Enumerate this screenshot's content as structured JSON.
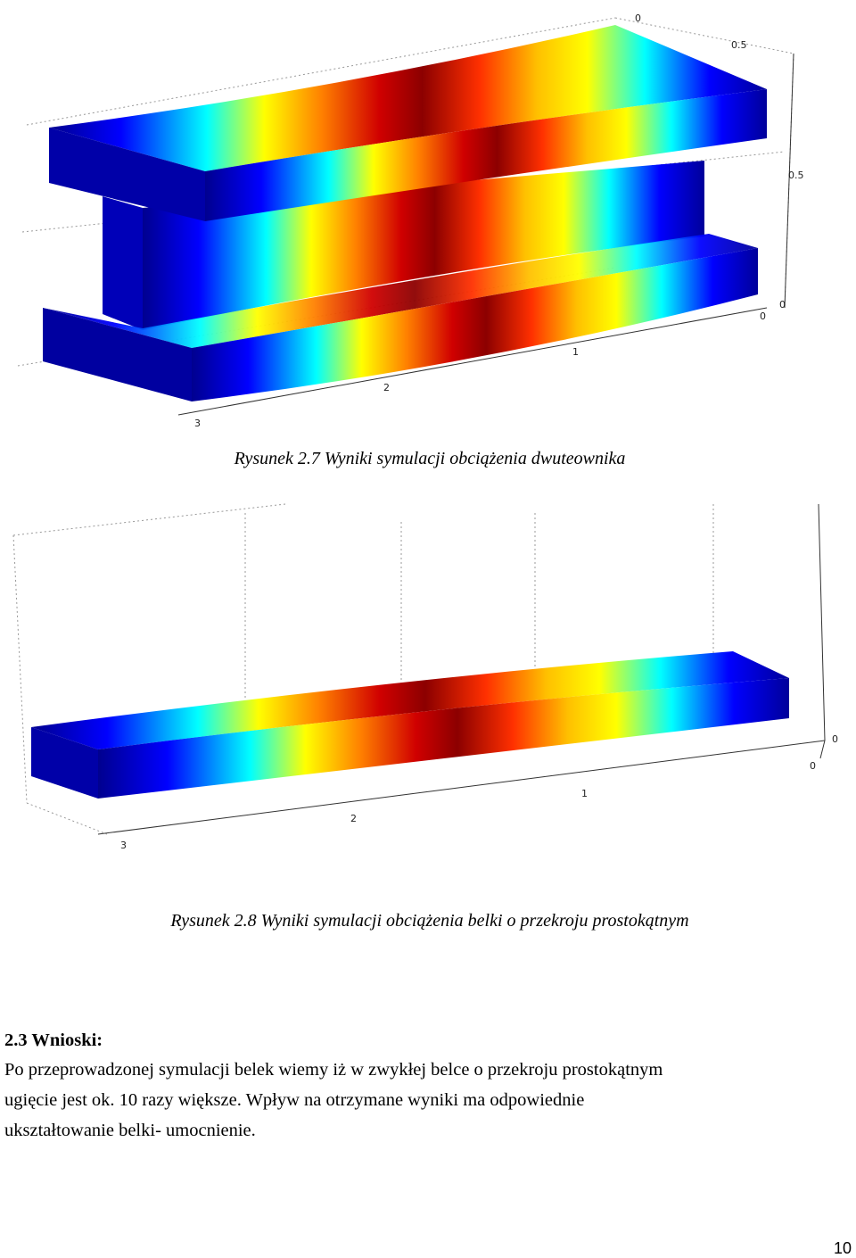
{
  "figures": [
    {
      "axis_labels": [
        "0",
        "0.5",
        "0.5",
        "0",
        "0",
        "1",
        "2",
        "3"
      ],
      "caption": "Rysunek 2.7 Wyniki symulacji obciążenia dwuteownika"
    },
    {
      "axis_labels": [
        "0",
        "0",
        "1",
        "2",
        "3"
      ],
      "caption": "Rysunek 2.8 Wyniki symulacji obciążenia belki o przekroju prostokątnym"
    }
  ],
  "section": {
    "heading": "2.3 Wnioski:",
    "lines": [
      "Po przeprowadzonej symulacji belek wiemy iż w zwykłej belce o przekroju prostokątnym",
      "ugięcie jest ok. 10 razy większe. Wpływ na otrzymane wyniki ma odpowiednie",
      "ukształtowanie belki- umocnienie."
    ]
  },
  "page_number": "10"
}
